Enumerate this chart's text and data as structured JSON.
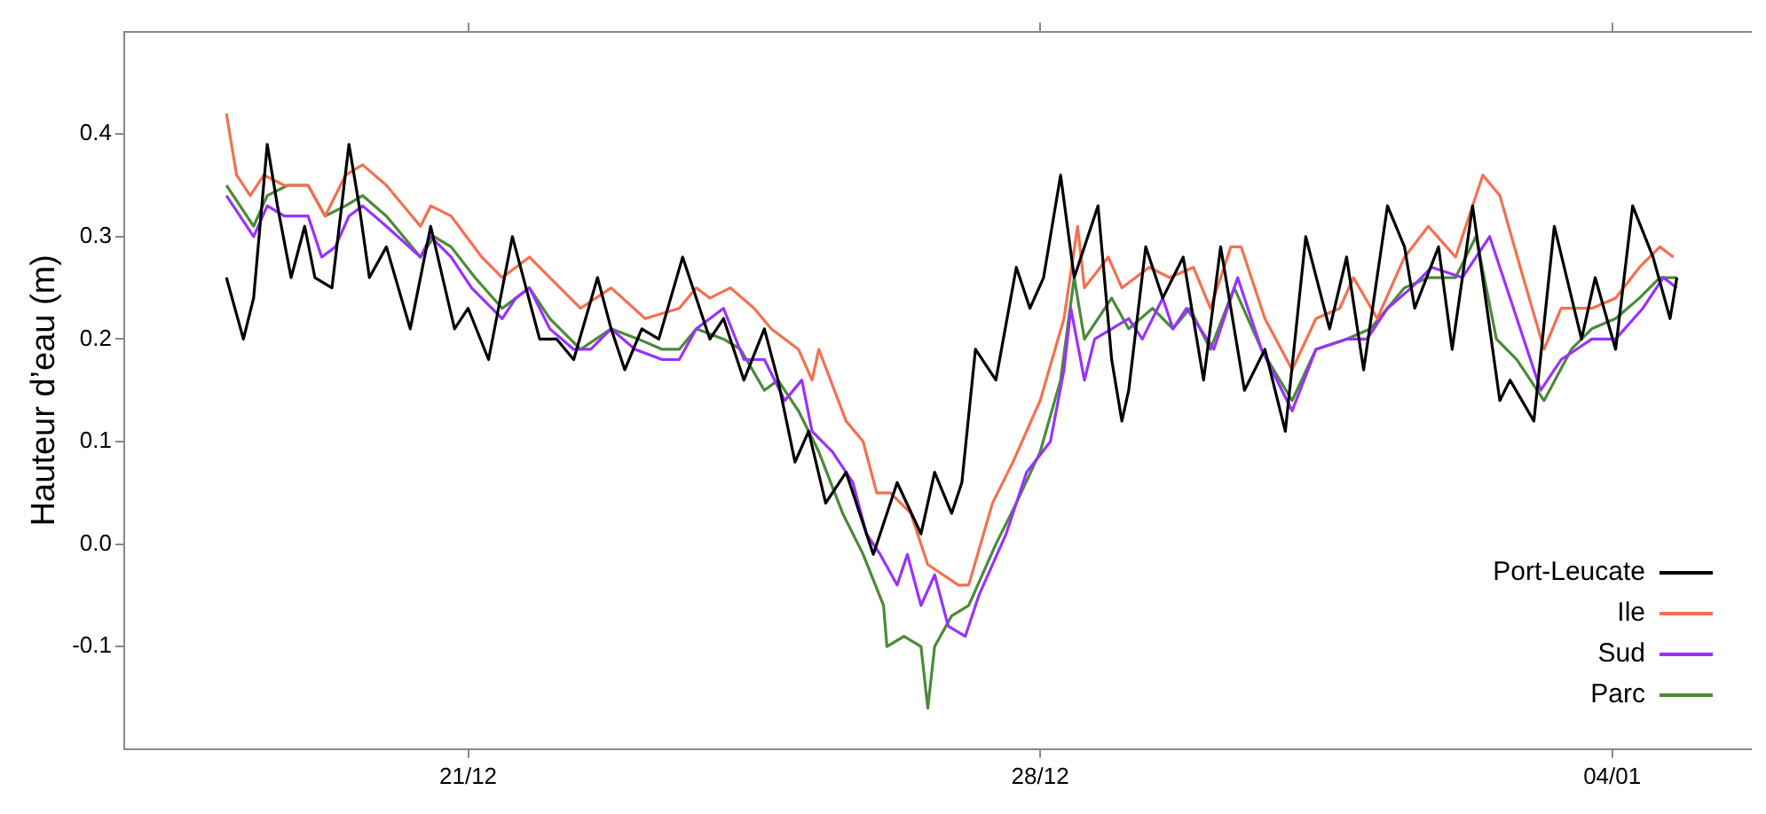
{
  "chart_data": {
    "type": "line",
    "ylabel": "Hauteur d’eau (m)",
    "xlim": [
      "2000-12-16T19:00",
      "2001-01-05T17:00"
    ],
    "ylim": [
      -0.2,
      0.5
    ],
    "xticks": [
      {
        "value": "2000-12-21",
        "label": "21/12"
      },
      {
        "value": "2000-12-28",
        "label": "28/12"
      },
      {
        "value": "2001-01-04",
        "label": "04/01"
      }
    ],
    "yticks": [
      -0.1,
      {
        "value": 0,
        "label": "0.0"
      },
      0.1,
      0.2,
      0.3,
      0.4
    ],
    "grid": false,
    "legend": "bottom right",
    "marker": "none",
    "line_style": "solid",
    "series": [
      {
        "name": "Port-Leucate",
        "color": "#000000",
        "x": [
          "2000-12-18T01:00",
          "2000-12-18T06:00",
          "2000-12-18T09:00",
          "2000-12-18T13:00",
          "2000-12-18T16:00",
          "2000-12-18T20:00",
          "2000-12-19T00:00",
          "2000-12-19T03:00",
          "2000-12-19T08:00",
          "2000-12-19T13:00",
          "2000-12-19T16:00",
          "2000-12-19T19:00",
          "2000-12-20T00:00",
          "2000-12-20T07:00",
          "2000-12-20T13:00",
          "2000-12-20T20:00",
          "2000-12-21T00:00",
          "2000-12-21T06:00",
          "2000-12-21T13:00",
          "2000-12-21T21:00",
          "2000-12-22T02:00",
          "2000-12-22T07:00",
          "2000-12-22T14:00",
          "2000-12-22T18:00",
          "2000-12-22T22:00",
          "2000-12-23T03:00",
          "2000-12-23T08:00",
          "2000-12-23T15:00",
          "2000-12-23T18:00",
          "2000-12-23T23:00",
          "2000-12-24T03:00",
          "2000-12-24T09:00",
          "2000-12-24T15:00",
          "2000-12-24T19:00",
          "2000-12-25T00:00",
          "2000-12-25T04:00",
          "2000-12-25T09:00",
          "2000-12-25T15:00",
          "2000-12-25T23:00",
          "2000-12-26T06:00",
          "2000-12-26T13:00",
          "2000-12-26T17:00",
          "2000-12-26T22:00",
          "2000-12-27T01:00",
          "2000-12-27T05:00",
          "2000-12-27T11:00",
          "2000-12-27T17:00",
          "2000-12-27T21:00",
          "2000-12-28T01:00",
          "2000-12-28T06:00",
          "2000-12-28T10:00",
          "2000-12-28T17:00",
          "2000-12-28T21:00",
          "2000-12-29T00:00",
          "2000-12-29T02:00",
          "2000-12-29T07:00",
          "2000-12-29T12:00",
          "2000-12-29T18:00",
          "2000-12-29T22:00",
          "2000-12-30T00:00",
          "2000-12-30T05:00",
          "2000-12-30T12:00",
          "2000-12-30T18:00",
          "2000-12-31T00:00",
          "2000-12-31T06:00",
          "2000-12-31T13:00",
          "2000-12-31T18:00",
          "2000-12-31T23:00",
          "2001-01-01T06:00",
          "2001-01-01T11:00",
          "2001-01-01T14:00",
          "2001-01-01T21:00",
          "2001-01-02T01:00",
          "2001-01-02T07:00",
          "2001-01-02T15:00",
          "2001-01-02T18:00",
          "2001-01-03T01:00",
          "2001-01-03T07:00",
          "2001-01-03T15:00",
          "2001-01-03T19:00",
          "2001-01-04T01:00",
          "2001-01-04T06:00",
          "2001-01-04T12:00",
          "2001-01-04T17:00",
          "2001-01-04T19:00"
        ],
        "values": [
          0.26,
          0.2,
          0.24,
          0.39,
          0.33,
          0.26,
          0.31,
          0.26,
          0.25,
          0.39,
          0.33,
          0.26,
          0.29,
          0.21,
          0.31,
          0.21,
          0.23,
          0.18,
          0.3,
          0.2,
          0.2,
          0.18,
          0.26,
          0.21,
          0.17,
          0.21,
          0.2,
          0.28,
          0.25,
          0.2,
          0.22,
          0.16,
          0.21,
          0.16,
          0.08,
          0.11,
          0.04,
          0.07,
          -0.01,
          0.06,
          0.01,
          0.07,
          0.03,
          0.06,
          0.19,
          0.16,
          0.27,
          0.23,
          0.26,
          0.36,
          0.26,
          0.33,
          0.18,
          0.12,
          0.15,
          0.29,
          0.24,
          0.28,
          0.2,
          0.16,
          0.29,
          0.15,
          0.19,
          0.11,
          0.3,
          0.21,
          0.28,
          0.17,
          0.33,
          0.29,
          0.23,
          0.29,
          0.19,
          0.33,
          0.14,
          0.16,
          0.12,
          0.31,
          0.2,
          0.26,
          0.19,
          0.33,
          0.28,
          0.22,
          0.26
        ]
      },
      {
        "name": "Ile",
        "color": "#f4704f",
        "x": [
          "2000-12-18T01:00",
          "2000-12-18T04:00",
          "2000-12-18T08:00",
          "2000-12-18T12:00",
          "2000-12-18T18:00",
          "2000-12-19T01:00",
          "2000-12-19T06:00",
          "2000-12-19T12:00",
          "2000-12-19T17:00",
          "2000-12-20T00:00",
          "2000-12-20T10:00",
          "2000-12-20T13:00",
          "2000-12-20T19:00",
          "2000-12-21T04:00",
          "2000-12-21T10:00",
          "2000-12-21T18:00",
          "2000-12-22T00:00",
          "2000-12-22T09:00",
          "2000-12-22T18:00",
          "2000-12-23T04:00",
          "2000-12-23T14:00",
          "2000-12-23T19:00",
          "2000-12-23T23:00",
          "2000-12-24T05:00",
          "2000-12-24T12:00",
          "2000-12-24T17:00",
          "2000-12-25T01:00",
          "2000-12-25T05:00",
          "2000-12-25T07:00",
          "2000-12-25T15:00",
          "2000-12-25T20:00",
          "2000-12-26T00:00",
          "2000-12-26T04:00",
          "2000-12-26T10:00",
          "2000-12-26T15:00",
          "2000-12-27T00:00",
          "2000-12-27T03:00",
          "2000-12-27T10:00",
          "2000-12-27T16:00",
          "2000-12-28T00:00",
          "2000-12-28T07:00",
          "2000-12-28T11:00",
          "2000-12-28T13:00",
          "2000-12-28T20:00",
          "2000-12-29T00:00",
          "2000-12-29T08:00",
          "2000-12-29T14:00",
          "2000-12-29T21:00",
          "2000-12-30T02:00",
          "2000-12-30T08:00",
          "2000-12-30T11:00",
          "2000-12-30T18:00",
          "2000-12-31T02:00",
          "2000-12-31T09:00",
          "2000-12-31T16:00",
          "2000-12-31T20:00",
          "2001-01-01T03:00",
          "2001-01-01T11:00",
          "2001-01-01T18:00",
          "2001-01-02T02:00",
          "2001-01-02T10:00",
          "2001-01-02T15:00",
          "2001-01-02T21:00",
          "2001-01-03T04:00",
          "2001-01-03T09:00",
          "2001-01-03T18:00",
          "2001-01-04T01:00",
          "2001-01-04T08:00",
          "2001-01-04T14:00",
          "2001-01-04T18:00"
        ],
        "values": [
          0.42,
          0.36,
          0.34,
          0.36,
          0.35,
          0.35,
          0.32,
          0.36,
          0.37,
          0.35,
          0.31,
          0.33,
          0.32,
          0.28,
          0.26,
          0.28,
          0.26,
          0.23,
          0.25,
          0.22,
          0.23,
          0.25,
          0.24,
          0.25,
          0.23,
          0.21,
          0.19,
          0.16,
          0.19,
          0.12,
          0.1,
          0.05,
          0.05,
          0.03,
          -0.02,
          -0.04,
          -0.04,
          0.04,
          0.08,
          0.14,
          0.22,
          0.31,
          0.25,
          0.28,
          0.25,
          0.27,
          0.26,
          0.27,
          0.23,
          0.29,
          0.29,
          0.22,
          0.17,
          0.22,
          0.23,
          0.26,
          0.22,
          0.28,
          0.31,
          0.28,
          0.36,
          0.34,
          0.27,
          0.19,
          0.23,
          0.23,
          0.24,
          0.27,
          0.29,
          0.28
        ]
      },
      {
        "name": "Sud",
        "color": "#9b30ff",
        "x": [
          "2000-12-18T01:00",
          "2000-12-18T05:00",
          "2000-12-18T09:00",
          "2000-12-18T13:00",
          "2000-12-18T18:00",
          "2000-12-19T01:00",
          "2000-12-19T05:00",
          "2000-12-19T09:00",
          "2000-12-19T13:00",
          "2000-12-19T17:00",
          "2000-12-20T00:00",
          "2000-12-20T10:00",
          "2000-12-20T13:00",
          "2000-12-20T19:00",
          "2000-12-21T01:00",
          "2000-12-21T10:00",
          "2000-12-21T14:00",
          "2000-12-21T18:00",
          "2000-12-22T00:00",
          "2000-12-22T07:00",
          "2000-12-22T12:00",
          "2000-12-22T18:00",
          "2000-12-23T01:00",
          "2000-12-23T09:00",
          "2000-12-23T14:00",
          "2000-12-23T19:00",
          "2000-12-24T03:00",
          "2000-12-24T09:00",
          "2000-12-24T15:00",
          "2000-12-24T21:00",
          "2000-12-25T02:00",
          "2000-12-25T05:00",
          "2000-12-25T11:00",
          "2000-12-25T17:00",
          "2000-12-25T21:00",
          "2000-12-26T01:00",
          "2000-12-26T06:00",
          "2000-12-26T09:00",
          "2000-12-26T13:00",
          "2000-12-26T17:00",
          "2000-12-26T21:00",
          "2000-12-27T02:00",
          "2000-12-27T06:00",
          "2000-12-27T14:00",
          "2000-12-27T20:00",
          "2000-12-28T03:00",
          "2000-12-28T07:00",
          "2000-12-28T09:00",
          "2000-12-28T13:00",
          "2000-12-28T16:00",
          "2000-12-28T21:00",
          "2000-12-29T02:00",
          "2000-12-29T06:00",
          "2000-12-29T12:00",
          "2000-12-29T15:00",
          "2000-12-29T19:00",
          "2000-12-30T03:00",
          "2000-12-30T10:00",
          "2000-12-30T17:00",
          "2000-12-31T02:00",
          "2000-12-31T09:00",
          "2000-12-31T18:00",
          "2001-01-01T00:00",
          "2001-01-01T06:00",
          "2001-01-01T13:00",
          "2001-01-01T19:00",
          "2001-01-02T04:00",
          "2001-01-02T12:00",
          "2001-01-02T17:00",
          "2001-01-02T23:00",
          "2001-01-03T03:00",
          "2001-01-03T09:00",
          "2001-01-03T18:00",
          "2001-01-04T01:00",
          "2001-01-04T09:00",
          "2001-01-04T15:00",
          "2001-01-04T19:00"
        ],
        "values": [
          0.34,
          0.32,
          0.3,
          0.33,
          0.32,
          0.32,
          0.28,
          0.29,
          0.32,
          0.33,
          0.31,
          0.28,
          0.3,
          0.28,
          0.25,
          0.22,
          0.24,
          0.25,
          0.21,
          0.19,
          0.19,
          0.21,
          0.19,
          0.18,
          0.18,
          0.21,
          0.23,
          0.18,
          0.18,
          0.14,
          0.16,
          0.11,
          0.09,
          0.06,
          0.01,
          -0.01,
          -0.04,
          -0.01,
          -0.06,
          -0.03,
          -0.08,
          -0.09,
          -0.05,
          0.01,
          0.07,
          0.1,
          0.17,
          0.23,
          0.16,
          0.2,
          0.21,
          0.22,
          0.2,
          0.24,
          0.21,
          0.23,
          0.19,
          0.26,
          0.19,
          0.13,
          0.19,
          0.2,
          0.2,
          0.23,
          0.25,
          0.27,
          0.26,
          0.3,
          0.25,
          0.19,
          0.15,
          0.18,
          0.2,
          0.2,
          0.23,
          0.26,
          0.25
        ]
      },
      {
        "name": "Parc",
        "color": "#4a8a3a",
        "x": [
          "2000-12-18T01:00",
          "2000-12-18T09:00",
          "2000-12-18T13:00",
          "2000-12-18T19:00",
          "2000-12-19T01:00",
          "2000-12-19T06:00",
          "2000-12-19T12:00",
          "2000-12-19T17:00",
          "2000-12-20T00:00",
          "2000-12-20T10:00",
          "2000-12-20T14:00",
          "2000-12-20T19:00",
          "2000-12-21T02:00",
          "2000-12-21T10:00",
          "2000-12-21T18:00",
          "2000-12-22T00:00",
          "2000-12-22T09:00",
          "2000-12-22T18:00",
          "2000-12-23T02:00",
          "2000-12-23T09:00",
          "2000-12-23T14:00",
          "2000-12-23T19:00",
          "2000-12-24T03:00",
          "2000-12-24T08:00",
          "2000-12-24T15:00",
          "2000-12-24T19:00",
          "2000-12-25T01:00",
          "2000-12-25T07:00",
          "2000-12-25T14:00",
          "2000-12-25T20:00",
          "2000-12-26T02:00",
          "2000-12-26T03:00",
          "2000-12-26T08:00",
          "2000-12-26T13:00",
          "2000-12-26T15:00",
          "2000-12-26T17:00",
          "2000-12-26T22:00",
          "2000-12-27T03:00",
          "2000-12-27T11:00",
          "2000-12-27T17:00",
          "2000-12-28T00:00",
          "2000-12-28T06:00",
          "2000-12-28T10:00",
          "2000-12-28T13:00",
          "2000-12-28T21:00",
          "2000-12-29T02:00",
          "2000-12-29T09:00",
          "2000-12-29T15:00",
          "2000-12-29T20:00",
          "2000-12-30T02:00",
          "2000-12-30T09:00",
          "2000-12-30T17:00",
          "2000-12-31T02:00",
          "2000-12-31T09:00",
          "2000-12-31T18:00",
          "2001-01-01T01:00",
          "2001-01-01T11:00",
          "2001-01-01T18:00",
          "2001-01-02T02:00",
          "2001-01-02T08:00",
          "2001-01-02T14:00",
          "2001-01-02T20:00",
          "2001-01-03T04:00",
          "2001-01-03T12:00",
          "2001-01-03T18:00",
          "2001-01-04T01:00",
          "2001-01-04T08:00",
          "2001-01-04T14:00",
          "2001-01-04T19:00"
        ],
        "values": [
          0.35,
          0.31,
          0.34,
          0.35,
          0.35,
          0.32,
          0.33,
          0.34,
          0.32,
          0.28,
          0.3,
          0.29,
          0.26,
          0.23,
          0.25,
          0.22,
          0.19,
          0.21,
          0.2,
          0.19,
          0.19,
          0.21,
          0.2,
          0.19,
          0.15,
          0.16,
          0.13,
          0.09,
          0.03,
          -0.01,
          -0.06,
          -0.1,
          -0.09,
          -0.1,
          -0.16,
          -0.1,
          -0.07,
          -0.06,
          0.0,
          0.04,
          0.09,
          0.16,
          0.26,
          0.2,
          0.24,
          0.21,
          0.23,
          0.21,
          0.23,
          0.19,
          0.25,
          0.19,
          0.14,
          0.19,
          0.2,
          0.21,
          0.25,
          0.26,
          0.26,
          0.3,
          0.2,
          0.18,
          0.14,
          0.19,
          0.21,
          0.22,
          0.24,
          0.26,
          0.26
        ]
      }
    ]
  }
}
